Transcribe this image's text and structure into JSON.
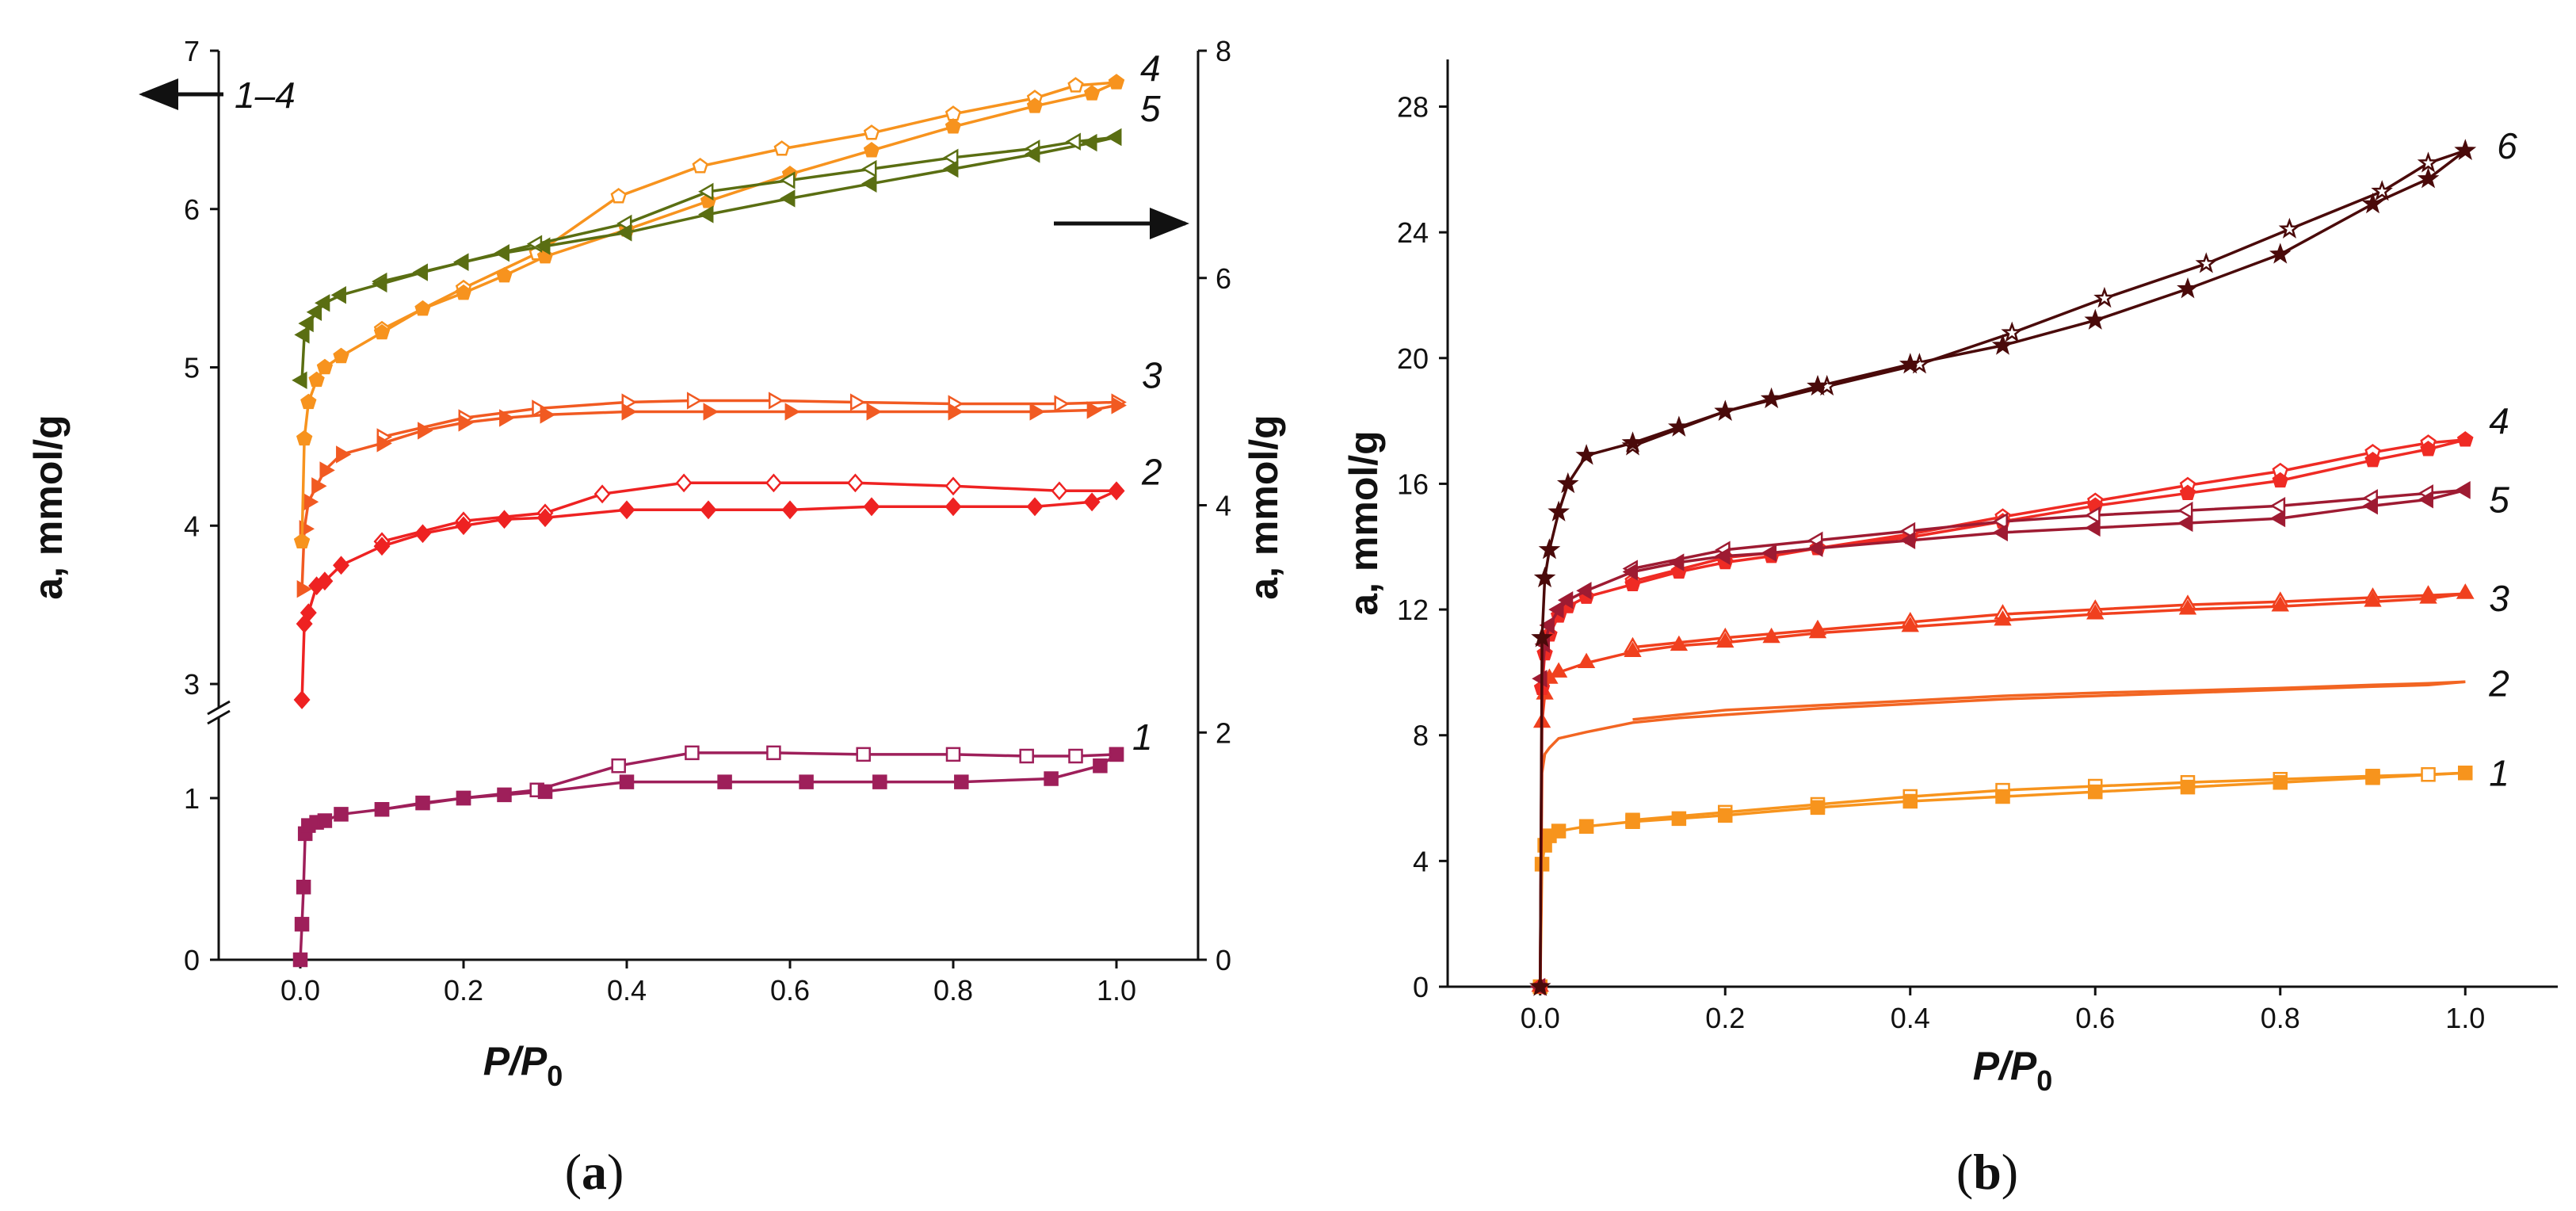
{
  "chart_data": [
    {
      "panel": "(a)",
      "panel_letter": "a",
      "type": "line",
      "xlabel": "P/P0",
      "xlabel_main": "P/P",
      "xlabel_sub": "0",
      "ylabel_left": "a, mmol/g",
      "ylabel_right": "a, mmol/g",
      "xlim": [
        -0.1,
        1.1
      ],
      "xticks": [
        "0.0",
        "0.2",
        "0.4",
        "0.6",
        "0.8",
        "1.0"
      ],
      "ylim_left_lower": [
        0,
        1.5
      ],
      "ylim_left_upper": [
        2.85,
        7.0
      ],
      "yticks_left": [
        "0",
        "1",
        "3",
        "4",
        "5",
        "6",
        "7"
      ],
      "ylim_right": [
        0,
        8
      ],
      "yticks_right": [
        "0",
        "2",
        "4",
        "6",
        "8"
      ],
      "annotations": {
        "left_axis_arrow": "1–4",
        "right_axis_arrow": ""
      },
      "series": [
        {
          "name": "1",
          "axis": "left",
          "color": "#9e1f5a",
          "marker": "square",
          "adsorption": {
            "x": [
              0,
              0.002,
              0.004,
              0.006,
              0.01,
              0.02,
              0.03,
              0.05,
              0.1,
              0.15,
              0.2,
              0.25,
              0.3,
              0.4,
              0.52,
              0.62,
              0.71,
              0.81,
              0.92,
              0.98,
              1.0
            ],
            "y": [
              0.0,
              0.22,
              0.45,
              0.78,
              0.83,
              0.85,
              0.86,
              0.9,
              0.93,
              0.97,
              1.0,
              1.02,
              1.04,
              1.1,
              1.1,
              1.1,
              1.1,
              1.1,
              1.12,
              1.2,
              1.27
            ]
          },
          "desorption": {
            "x": [
              1.0,
              0.95,
              0.89,
              0.8,
              0.69,
              0.58,
              0.48,
              0.39,
              0.29,
              0.2,
              0.1
            ],
            "y": [
              1.27,
              1.26,
              1.26,
              1.27,
              1.27,
              1.28,
              1.28,
              1.2,
              1.05,
              1.0,
              0.93
            ]
          }
        },
        {
          "name": "2",
          "axis": "left",
          "color": "#ee2222",
          "marker": "diamond",
          "adsorption": {
            "x": [
              0.002,
              0.005,
              0.01,
              0.02,
              0.03,
              0.05,
              0.1,
              0.15,
              0.2,
              0.25,
              0.3,
              0.4,
              0.5,
              0.6,
              0.7,
              0.8,
              0.9,
              0.97,
              1.0
            ],
            "y": [
              2.9,
              3.38,
              3.45,
              3.62,
              3.65,
              3.75,
              3.87,
              3.95,
              4.0,
              4.04,
              4.05,
              4.1,
              4.1,
              4.1,
              4.12,
              4.12,
              4.12,
              4.15,
              4.22
            ]
          },
          "desorption": {
            "x": [
              1.0,
              0.93,
              0.8,
              0.68,
              0.58,
              0.47,
              0.37,
              0.3,
              0.2,
              0.1
            ],
            "y": [
              4.22,
              4.22,
              4.25,
              4.27,
              4.27,
              4.27,
              4.2,
              4.08,
              4.03,
              3.9
            ]
          }
        },
        {
          "name": "3",
          "axis": "left",
          "color": "#f15a22",
          "marker": "triangle-right",
          "adsorption": {
            "x": [
              0.002,
              0.005,
              0.01,
              0.02,
              0.03,
              0.05,
              0.1,
              0.15,
              0.2,
              0.25,
              0.3,
              0.4,
              0.5,
              0.6,
              0.7,
              0.8,
              0.9,
              0.97,
              1.0
            ],
            "y": [
              3.6,
              3.98,
              4.15,
              4.25,
              4.35,
              4.45,
              4.52,
              4.6,
              4.65,
              4.68,
              4.7,
              4.72,
              4.72,
              4.72,
              4.72,
              4.72,
              4.72,
              4.73,
              4.76
            ]
          },
          "desorption": {
            "x": [
              1.0,
              0.93,
              0.8,
              0.68,
              0.58,
              0.48,
              0.4,
              0.29,
              0.2,
              0.1
            ],
            "y": [
              4.78,
              4.77,
              4.77,
              4.78,
              4.79,
              4.79,
              4.78,
              4.74,
              4.68,
              4.56
            ]
          }
        },
        {
          "name": "4",
          "axis": "left",
          "color": "#f7931e",
          "marker": "pentagon",
          "adsorption": {
            "x": [
              0.002,
              0.005,
              0.01,
              0.02,
              0.03,
              0.05,
              0.1,
              0.15,
              0.2,
              0.25,
              0.3,
              0.4,
              0.5,
              0.6,
              0.7,
              0.8,
              0.9,
              0.97,
              1.0
            ],
            "y": [
              3.9,
              4.55,
              4.78,
              4.92,
              5.0,
              5.07,
              5.22,
              5.37,
              5.47,
              5.58,
              5.7,
              5.87,
              6.05,
              6.22,
              6.37,
              6.52,
              6.65,
              6.73,
              6.8
            ]
          },
          "desorption": {
            "x": [
              1.0,
              0.95,
              0.9,
              0.8,
              0.7,
              0.59,
              0.49,
              0.39,
              0.29,
              0.2,
              0.1
            ],
            "y": [
              6.8,
              6.78,
              6.7,
              6.6,
              6.48,
              6.38,
              6.27,
              6.08,
              5.72,
              5.5,
              5.24
            ]
          }
        },
        {
          "name": "5",
          "axis": "right",
          "color": "#5a6e12",
          "marker": "triangle-left",
          "adsorption": {
            "x": [
              0.002,
              0.005,
              0.01,
              0.02,
              0.03,
              0.05,
              0.1,
              0.15,
              0.2,
              0.25,
              0.3,
              0.4,
              0.5,
              0.6,
              0.7,
              0.8,
              0.9,
              0.97,
              1.0
            ],
            "y": [
              5.1,
              5.5,
              5.6,
              5.7,
              5.78,
              5.85,
              5.95,
              6.05,
              6.14,
              6.22,
              6.28,
              6.4,
              6.56,
              6.7,
              6.83,
              6.96,
              7.09,
              7.19,
              7.24
            ]
          },
          "desorption": {
            "x": [
              1.0,
              0.95,
              0.9,
              0.8,
              0.7,
              0.6,
              0.5,
              0.4,
              0.29,
              0.2,
              0.1
            ],
            "y": [
              7.24,
              7.2,
              7.14,
              7.06,
              6.96,
              6.86,
              6.76,
              6.48,
              6.3,
              6.14,
              5.97
            ]
          }
        }
      ]
    },
    {
      "panel": "(b)",
      "panel_letter": "b",
      "type": "line",
      "xlabel": "P/P0",
      "xlabel_main": "P/P",
      "xlabel_sub": "0",
      "ylabel": "a, mmol/g",
      "xlim": [
        -0.1,
        1.1
      ],
      "xticks": [
        "0.0",
        "0.2",
        "0.4",
        "0.6",
        "0.8",
        "1.0"
      ],
      "ylim": [
        0,
        29.5
      ],
      "yticks": [
        "0",
        "4",
        "8",
        "12",
        "16",
        "20",
        "24",
        "28"
      ],
      "series": [
        {
          "name": "1",
          "color": "#f7941d",
          "marker": "square",
          "adsorption": {
            "x": [
              0,
              0.002,
              0.005,
              0.01,
              0.02,
              0.05,
              0.1,
              0.15,
              0.2,
              0.3,
              0.4,
              0.5,
              0.6,
              0.7,
              0.8,
              0.9,
              1.0
            ],
            "y": [
              0,
              3.9,
              4.5,
              4.8,
              4.95,
              5.1,
              5.25,
              5.35,
              5.45,
              5.7,
              5.9,
              6.05,
              6.2,
              6.35,
              6.5,
              6.65,
              6.8
            ]
          },
          "desorption": {
            "x": [
              1.0,
              0.96,
              0.9,
              0.8,
              0.7,
              0.6,
              0.5,
              0.4,
              0.3,
              0.2,
              0.1
            ],
            "y": [
              6.8,
              6.75,
              6.7,
              6.6,
              6.5,
              6.38,
              6.25,
              6.05,
              5.8,
              5.55,
              5.3
            ]
          }
        },
        {
          "name": "2",
          "color": "#f26522",
          "marker": "circle",
          "adsorption": {
            "x": [
              0,
              0.002,
              0.005,
              0.01,
              0.02,
              0.05,
              0.1,
              0.15,
              0.2,
              0.25,
              0.3,
              0.4,
              0.5,
              0.6,
              0.7,
              0.8,
              0.9,
              0.96,
              1.0
            ],
            "y": [
              0,
              6.8,
              7.4,
              7.6,
              7.9,
              8.1,
              8.4,
              8.55,
              8.65,
              8.75,
              8.85,
              9.0,
              9.15,
              9.25,
              9.35,
              9.45,
              9.55,
              9.6,
              9.7
            ]
          },
          "desorption": {
            "x": [
              1.0,
              0.96,
              0.9,
              0.8,
              0.7,
              0.6,
              0.5,
              0.4,
              0.3,
              0.2,
              0.1
            ],
            "y": [
              9.7,
              9.65,
              9.6,
              9.5,
              9.42,
              9.35,
              9.25,
              9.1,
              8.95,
              8.8,
              8.5
            ]
          }
        },
        {
          "name": "3",
          "color": "#f0401e",
          "marker": "triangle",
          "adsorption": {
            "x": [
              0,
              0.002,
              0.005,
              0.01,
              0.02,
              0.05,
              0.1,
              0.15,
              0.2,
              0.25,
              0.3,
              0.4,
              0.5,
              0.6,
              0.7,
              0.8,
              0.9,
              0.96,
              1.0
            ],
            "y": [
              0,
              8.4,
              9.3,
              9.8,
              10.0,
              10.3,
              10.65,
              10.85,
              10.95,
              11.1,
              11.25,
              11.45,
              11.65,
              11.85,
              12.0,
              12.1,
              12.25,
              12.35,
              12.5
            ]
          },
          "desorption": {
            "x": [
              1.0,
              0.96,
              0.9,
              0.8,
              0.7,
              0.6,
              0.5,
              0.4,
              0.3,
              0.2,
              0.1
            ],
            "y": [
              12.5,
              12.45,
              12.38,
              12.25,
              12.15,
              12.0,
              11.85,
              11.6,
              11.35,
              11.1,
              10.8
            ]
          }
        },
        {
          "name": "4",
          "color": "#ef2b24",
          "marker": "pentagon",
          "adsorption": {
            "x": [
              0,
              0.002,
              0.005,
              0.01,
              0.02,
              0.03,
              0.05,
              0.1,
              0.15,
              0.2,
              0.25,
              0.3,
              0.4,
              0.5,
              0.6,
              0.7,
              0.8,
              0.9,
              0.96,
              1.0
            ],
            "y": [
              0,
              9.5,
              10.6,
              11.2,
              11.8,
              12.1,
              12.4,
              12.8,
              13.2,
              13.5,
              13.7,
              13.95,
              14.3,
              14.8,
              15.3,
              15.7,
              16.1,
              16.75,
              17.1,
              17.4
            ]
          },
          "desorption": {
            "x": [
              1.0,
              0.96,
              0.9,
              0.8,
              0.7,
              0.6,
              0.5,
              0.4,
              0.3,
              0.2,
              0.1
            ],
            "y": [
              17.4,
              17.3,
              17.0,
              16.4,
              15.95,
              15.45,
              14.95,
              14.4,
              13.95,
              13.65,
              12.9
            ]
          }
        },
        {
          "name": "5",
          "color": "#9e1b32",
          "marker": "triangle-left",
          "adsorption": {
            "x": [
              0,
              0.002,
              0.005,
              0.01,
              0.02,
              0.03,
              0.05,
              0.1,
              0.15,
              0.2,
              0.25,
              0.3,
              0.4,
              0.5,
              0.6,
              0.7,
              0.8,
              0.9,
              0.96,
              1.0
            ],
            "y": [
              0,
              9.8,
              10.9,
              11.5,
              12.0,
              12.3,
              12.6,
              13.2,
              13.5,
              13.7,
              13.8,
              13.95,
              14.2,
              14.45,
              14.6,
              14.75,
              14.9,
              15.3,
              15.5,
              15.8
            ]
          },
          "desorption": {
            "x": [
              1.0,
              0.96,
              0.9,
              0.8,
              0.7,
              0.6,
              0.5,
              0.4,
              0.3,
              0.2,
              0.1
            ],
            "y": [
              15.8,
              15.7,
              15.55,
              15.3,
              15.15,
              15.0,
              14.8,
              14.5,
              14.2,
              13.9,
              13.3
            ]
          }
        },
        {
          "name": "6",
          "color": "#4a0a0a",
          "marker": "star",
          "adsorption": {
            "x": [
              0,
              0.002,
              0.005,
              0.01,
              0.02,
              0.03,
              0.05,
              0.1,
              0.15,
              0.2,
              0.25,
              0.3,
              0.4,
              0.5,
              0.6,
              0.7,
              0.8,
              0.9,
              0.96,
              1.0
            ],
            "y": [
              0,
              11.1,
              13.0,
              13.9,
              15.1,
              16.0,
              16.9,
              17.3,
              17.8,
              18.3,
              18.7,
              19.1,
              19.8,
              20.4,
              21.2,
              22.2,
              23.3,
              24.9,
              25.7,
              26.6
            ]
          },
          "desorption": {
            "x": [
              1.0,
              0.96,
              0.91,
              0.81,
              0.72,
              0.61,
              0.51,
              0.41,
              0.31,
              0.2,
              0.1
            ],
            "y": [
              26.6,
              26.2,
              25.3,
              24.1,
              23.0,
              21.9,
              20.8,
              19.8,
              19.1,
              18.3,
              17.2
            ]
          }
        }
      ]
    }
  ]
}
